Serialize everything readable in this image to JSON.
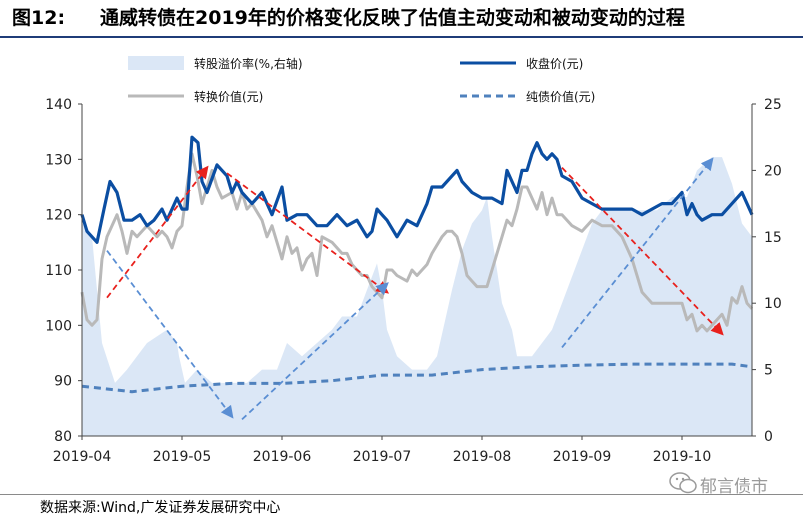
{
  "title": {
    "label": "图12:",
    "text": "通威转债在2019年的价格变化反映了估值主动变动和被动变动的过程"
  },
  "source": "数据来源:Wind,广发证券发展研究中心",
  "watermark": "郁言债市",
  "colors": {
    "premium": "#dbe7f6",
    "close": "#0b4ea2",
    "conversion": "#b9b9b9",
    "bond": "#4f81bd",
    "red_arrow": "#e8211d",
    "blue_arrow": "#5a8ed3",
    "title_rule": "#1f3c78"
  },
  "chart_data": {
    "type": "line",
    "x_ticks": [
      "2019-04",
      "2019-05",
      "2019-06",
      "2019-07",
      "2019-08",
      "2019-09",
      "2019-10"
    ],
    "y_left": {
      "min": 80,
      "max": 140,
      "ticks": [
        "80",
        "90",
        "100",
        "110",
        "120",
        "130",
        "140"
      ]
    },
    "y_right": {
      "min": 0,
      "max": 25,
      "ticks": [
        "0",
        "5",
        "10",
        "15",
        "20",
        "25"
      ]
    },
    "grid": false,
    "legend_position": "top",
    "series": [
      {
        "name": "转股溢价率(%,右轴)",
        "type": "area",
        "axis": "right",
        "color": "#dbe7f6",
        "t": [
          0,
          0.03,
          0.1,
          0.2,
          0.33,
          0.45,
          0.55,
          0.65,
          0.85,
          0.95,
          0.97,
          1.03,
          1.15,
          1.3,
          1.5,
          1.65,
          1.8,
          1.95,
          2.05,
          2.2,
          2.35,
          2.5,
          2.6,
          2.75,
          2.85,
          2.95,
          3.0,
          3.05,
          3.15,
          3.3,
          3.45,
          3.55,
          3.7,
          3.8,
          3.9,
          4.0,
          4.05,
          4.1,
          4.2,
          4.3,
          4.35,
          4.5,
          4.6,
          4.7,
          4.8,
          4.95,
          5.1,
          5.2,
          5.3,
          5.45,
          5.6,
          5.75,
          5.9,
          6.05,
          6.15,
          6.3,
          6.4,
          6.5,
          6.6,
          6.7
        ],
        "values": [
          16,
          16,
          15,
          7,
          4,
          5,
          6,
          7,
          8,
          7,
          6,
          4,
          5,
          4,
          4,
          4,
          5,
          5,
          7,
          6,
          7,
          8,
          9,
          9,
          11,
          13,
          11,
          8,
          6,
          5,
          5,
          6,
          11,
          14,
          16,
          17,
          18,
          15,
          10,
          8,
          6,
          6,
          7,
          8,
          10,
          13,
          16,
          17,
          17,
          17,
          17,
          17,
          18,
          18,
          20,
          21,
          21,
          19,
          16,
          15
        ]
      },
      {
        "name": "收盘价(元)",
        "type": "line",
        "axis": "left",
        "color": "#0b4ea2",
        "t": [
          0,
          0.05,
          0.15,
          0.22,
          0.28,
          0.35,
          0.42,
          0.5,
          0.58,
          0.65,
          0.72,
          0.8,
          0.85,
          0.9,
          0.95,
          1.0,
          1.05,
          1.1,
          1.16,
          1.2,
          1.25,
          1.35,
          1.45,
          1.5,
          1.55,
          1.6,
          1.7,
          1.8,
          1.9,
          2.0,
          2.05,
          2.15,
          2.25,
          2.35,
          2.45,
          2.55,
          2.65,
          2.75,
          2.85,
          2.9,
          2.95,
          3.0,
          3.05,
          3.15,
          3.25,
          3.35,
          3.45,
          3.5,
          3.6,
          3.7,
          3.75,
          3.8,
          3.85,
          3.9,
          4.0,
          4.1,
          4.2,
          4.25,
          4.3,
          4.35,
          4.4,
          4.45,
          4.5,
          4.55,
          4.6,
          4.65,
          4.7,
          4.75,
          4.8,
          4.9,
          5.0,
          5.1,
          5.2,
          5.3,
          5.4,
          5.5,
          5.6,
          5.7,
          5.8,
          5.9,
          6.0,
          6.05,
          6.1,
          6.15,
          6.2,
          6.3,
          6.4,
          6.5,
          6.6,
          6.7
        ],
        "values": [
          120,
          117,
          115,
          121,
          126,
          124,
          119,
          119,
          120,
          118,
          119,
          121,
          119,
          121,
          123,
          121,
          121,
          134,
          133,
          126,
          124,
          129,
          127,
          124,
          126,
          124,
          122,
          124,
          120,
          125,
          119,
          120,
          120,
          118,
          118,
          120,
          118,
          119,
          116,
          117,
          121,
          120,
          119,
          116,
          119,
          118,
          122,
          125,
          125,
          127,
          128,
          126,
          125,
          124,
          123,
          123,
          122,
          128,
          126,
          124,
          128,
          128,
          131,
          133,
          131,
          130,
          131,
          130,
          127,
          126,
          123,
          122,
          121,
          121,
          121,
          121,
          120,
          121,
          122,
          122,
          124,
          120,
          122,
          120,
          119,
          120,
          120,
          122,
          124,
          120
        ]
      },
      {
        "name": "转换价值(元)",
        "type": "line",
        "axis": "left",
        "color": "#b9b9b9",
        "t": [
          0,
          0.05,
          0.1,
          0.15,
          0.2,
          0.25,
          0.3,
          0.35,
          0.4,
          0.45,
          0.5,
          0.55,
          0.6,
          0.65,
          0.7,
          0.75,
          0.8,
          0.85,
          0.9,
          0.95,
          1.0,
          1.05,
          1.1,
          1.15,
          1.2,
          1.25,
          1.3,
          1.35,
          1.4,
          1.5,
          1.55,
          1.6,
          1.65,
          1.7,
          1.8,
          1.85,
          1.9,
          1.95,
          2.0,
          2.05,
          2.1,
          2.15,
          2.2,
          2.25,
          2.3,
          2.35,
          2.4,
          2.5,
          2.6,
          2.65,
          2.7,
          2.75,
          2.8,
          2.85,
          2.9,
          2.95,
          3.0,
          3.05,
          3.1,
          3.15,
          3.25,
          3.3,
          3.35,
          3.45,
          3.5,
          3.6,
          3.65,
          3.7,
          3.75,
          3.8,
          3.85,
          3.9,
          3.95,
          4.0,
          4.05,
          4.1,
          4.15,
          4.2,
          4.25,
          4.3,
          4.35,
          4.4,
          4.45,
          4.5,
          4.55,
          4.6,
          4.65,
          4.7,
          4.75,
          4.8,
          4.9,
          5.0,
          5.1,
          5.2,
          5.3,
          5.4,
          5.5,
          5.6,
          5.7,
          5.8,
          5.9,
          6.0,
          6.05,
          6.1,
          6.15,
          6.2,
          6.25,
          6.3,
          6.4,
          6.45,
          6.5,
          6.55,
          6.6,
          6.65,
          6.7
        ],
        "values": [
          106,
          101,
          100,
          101,
          112,
          116,
          118,
          120,
          117,
          113,
          117,
          116,
          117,
          118,
          117,
          116,
          117,
          116,
          114,
          117,
          118,
          125,
          131,
          127,
          122,
          125,
          128,
          125,
          123,
          124,
          121,
          124,
          121,
          122,
          119,
          116,
          118,
          115,
          112,
          116,
          113,
          114,
          110,
          112,
          113,
          109,
          116,
          115,
          113,
          113,
          111,
          110,
          109,
          109,
          107,
          106,
          105,
          110,
          110,
          109,
          108,
          110,
          109,
          111,
          113,
          116,
          117,
          117,
          116,
          113,
          109,
          108,
          107,
          107,
          107,
          110,
          113,
          116,
          119,
          118,
          121,
          125,
          125,
          123,
          121,
          124,
          120,
          123,
          120,
          120,
          118,
          117,
          119,
          118,
          118,
          116,
          112,
          106,
          104,
          104,
          104,
          104,
          101,
          102,
          99,
          100,
          99,
          100,
          102,
          100,
          105,
          104,
          107,
          104,
          103
        ]
      },
      {
        "name": "纯债价值(元)",
        "type": "line",
        "axis": "left",
        "color": "#4f81bd",
        "dashed": true,
        "t": [
          0,
          0.5,
          1.0,
          1.5,
          2.0,
          2.5,
          3.0,
          3.5,
          4.0,
          4.5,
          5.0,
          5.5,
          6.0,
          6.5,
          6.7
        ],
        "values": [
          89,
          88,
          89,
          89.5,
          89.5,
          90,
          91,
          91,
          92,
          92.5,
          92.8,
          93,
          93,
          93,
          92.5
        ]
      }
    ],
    "annotations": [
      {
        "type": "arrow",
        "color": "red",
        "from": [
          0.25,
          105
        ],
        "to": [
          1.25,
          128.5
        ]
      },
      {
        "type": "arrow",
        "color": "red",
        "from": [
          1.45,
          127.5
        ],
        "to": [
          3.05,
          106
        ]
      },
      {
        "type": "arrow",
        "color": "red",
        "from": [
          4.8,
          128.5
        ],
        "to": [
          6.4,
          98.5
        ]
      },
      {
        "type": "arrow",
        "color": "blue",
        "from": [
          0.25,
          113.5
        ],
        "to": [
          1.5,
          83.5
        ]
      },
      {
        "type": "arrow",
        "color": "blue",
        "from": [
          1.6,
          83
        ],
        "to": [
          3.05,
          107.5
        ]
      },
      {
        "type": "arrow",
        "color": "blue",
        "from": [
          4.8,
          96
        ],
        "to": [
          6.3,
          130
        ]
      }
    ]
  }
}
